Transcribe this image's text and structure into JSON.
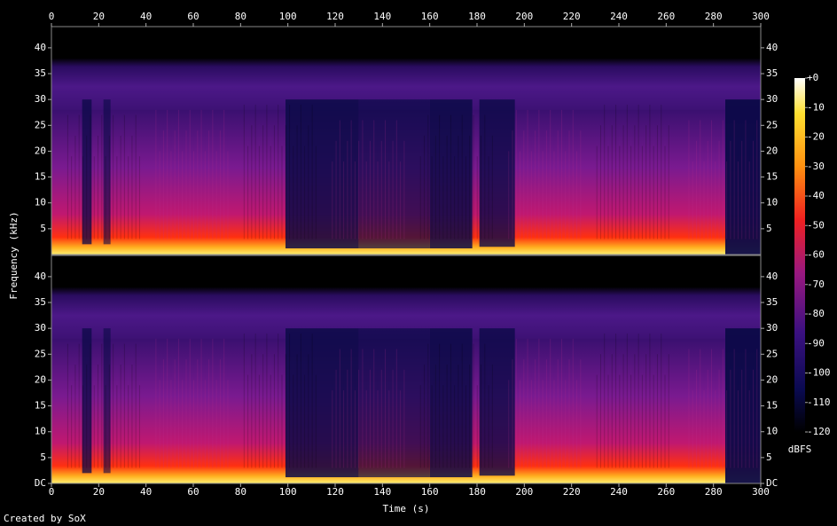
{
  "chart_data": [
    {
      "type": "spectrogram",
      "ylabel": "Frequency (kHz)",
      "xlim": [
        0,
        300
      ],
      "xticks": [
        0,
        20,
        40,
        60,
        80,
        100,
        120,
        140,
        160,
        180,
        200,
        220,
        240,
        260,
        280,
        300
      ],
      "ylim": [
        0,
        44.1
      ],
      "yticks": [
        5,
        10,
        15,
        20,
        25,
        30,
        35,
        40
      ]
    },
    {
      "type": "spectrogram",
      "xlabel": "Time (s)",
      "xlim": [
        0,
        300
      ],
      "xticks": [
        0,
        20,
        40,
        60,
        80,
        100,
        120,
        140,
        160,
        180,
        200,
        220,
        240,
        260,
        280,
        300
      ],
      "ylim": [
        0,
        44.1
      ],
      "yticks": [
        {
          "value": 0,
          "label": "DC"
        },
        5,
        10,
        15,
        20,
        25,
        30,
        35,
        40
      ]
    }
  ],
  "colorbar": {
    "label": "dBFS",
    "lim": [
      -120,
      0
    ],
    "ticks": [
      {
        "value": 0,
        "label": "+0"
      },
      -10,
      -20,
      -30,
      -40,
      -50,
      -60,
      -70,
      -80,
      -90,
      -100,
      -110,
      -120
    ]
  },
  "footer": "Created by SoX"
}
